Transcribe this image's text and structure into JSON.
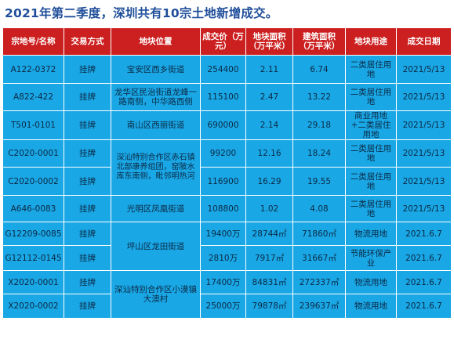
{
  "title": "2021年第二季度，深圳共有10宗土地新增成交。",
  "headers": [
    "宗地号/名称",
    "交易方式",
    "地块位置",
    "成交价（万元）",
    "地块面积（万平米）",
    "建筑面积（万平米）",
    "地块用途",
    "成交日期"
  ],
  "rows": [
    {
      "id": "A122-0372",
      "method": "挂牌",
      "location": "宝安区西乡街道",
      "price": "254400",
      "land_area": "2.11",
      "build_area": "6.74",
      "use": "二类居住用地",
      "date": "2021/5/13"
    },
    {
      "id": "A822-422",
      "method": "挂牌",
      "location": "龙华区民治街道龙峰一路南侧，中华路西侧",
      "price": "115100",
      "land_area": "2.47",
      "build_area": "13.22",
      "use": "二类居住用地",
      "date": "2021/5/13"
    },
    {
      "id": "T501-0101",
      "method": "挂牌",
      "location": "南山区西丽街道",
      "price": "690000",
      "land_area": "2.14",
      "build_area": "29.18",
      "use": "商业用地+二类居住用地",
      "date": "2021/5/13"
    },
    {
      "id": "C2020-0001",
      "method": "挂牌",
      "location": "深汕特别合作区赤石镇北部康养组团，窑陂水库东南侧，毗邻明热河",
      "price": "99200",
      "land_area": "12.16",
      "build_area": "18.24",
      "use": "二类居住用地",
      "date": "2021/5/13"
    },
    {
      "id": "C2020-0002",
      "method": "挂牌",
      "price": "116900",
      "land_area": "16.29",
      "build_area": "19.55",
      "use": "二类居住用地",
      "date": "2021/5/13"
    },
    {
      "id": "A646-0083",
      "method": "挂牌",
      "location": "光明区凤凰街道",
      "price": "108800",
      "land_area": "1.02",
      "build_area": "4.08",
      "use": "二类居住用地",
      "date": "2021/5/13"
    },
    {
      "id": "G12209-0085",
      "method": "挂牌",
      "location": "坪山区龙田街道",
      "price": "19400万",
      "land_area": "28744㎡",
      "build_area": "71860㎡",
      "use": "物流用地",
      "date": "2021.6.7"
    },
    {
      "id": "G12112-0145",
      "method": "挂牌",
      "price": "2810万",
      "land_area": "7917㎡",
      "build_area": "31667㎡",
      "use": "节能环保产业",
      "date": "2021.6.7"
    },
    {
      "id": "X2020-0001",
      "method": "挂牌",
      "location": "深汕特别合作区小漠镇大澳村",
      "price": "17400万",
      "land_area": "84831㎡",
      "build_area": "272337㎡",
      "use": "物流用地",
      "date": "2021.6.7"
    },
    {
      "id": "X2020-0002",
      "method": "挂牌",
      "price": "25000万",
      "land_area": "79878㎡",
      "build_area": "239637㎡",
      "use": "物流用地",
      "date": "2021.6.7"
    }
  ]
}
